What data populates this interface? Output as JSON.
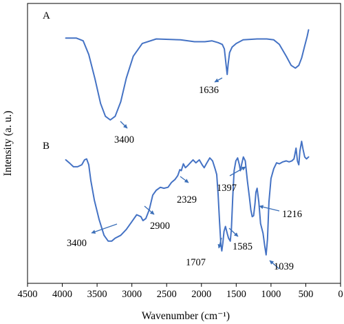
{
  "chart_data": {
    "type": "line",
    "xlabel": "Wavenumber (cm⁻¹)",
    "ylabel": "Intensity (a. u.)",
    "xlim": [
      4500,
      0
    ],
    "x_reversed": true,
    "x_ticks": [
      "4500",
      "4000",
      "3500",
      "3000",
      "2500",
      "2000",
      "1500",
      "1000",
      "500",
      "0"
    ],
    "grid": false,
    "colors": {
      "line": "#4472c4",
      "arrow": "#3b6fb8",
      "axis": "#000000"
    },
    "series": [
      {
        "name": "A",
        "points": [
          [
            3950,
            0.9
          ],
          [
            3800,
            0.9
          ],
          [
            3700,
            0.87
          ],
          [
            3620,
            0.72
          ],
          [
            3530,
            0.45
          ],
          [
            3450,
            0.18
          ],
          [
            3380,
            0.04
          ],
          [
            3310,
            0.0
          ],
          [
            3240,
            0.04
          ],
          [
            3160,
            0.2
          ],
          [
            3080,
            0.46
          ],
          [
            2980,
            0.7
          ],
          [
            2850,
            0.84
          ],
          [
            2650,
            0.89
          ],
          [
            2300,
            0.88
          ],
          [
            2100,
            0.86
          ],
          [
            1950,
            0.86
          ],
          [
            1850,
            0.87
          ],
          [
            1760,
            0.85
          ],
          [
            1700,
            0.83
          ],
          [
            1670,
            0.78
          ],
          [
            1645,
            0.6
          ],
          [
            1630,
            0.5
          ],
          [
            1615,
            0.62
          ],
          [
            1595,
            0.74
          ],
          [
            1560,
            0.8
          ],
          [
            1500,
            0.84
          ],
          [
            1400,
            0.88
          ],
          [
            1200,
            0.89
          ],
          [
            1060,
            0.89
          ],
          [
            960,
            0.88
          ],
          [
            880,
            0.83
          ],
          [
            780,
            0.7
          ],
          [
            710,
            0.6
          ],
          [
            650,
            0.57
          ],
          [
            600,
            0.6
          ],
          [
            560,
            0.68
          ],
          [
            520,
            0.8
          ],
          [
            480,
            0.92
          ],
          [
            460,
            0.99
          ]
        ],
        "panel_label": "A",
        "annotations": [
          {
            "text": "1636",
            "x": 1636
          },
          {
            "text": "3400",
            "x": 3300
          }
        ]
      },
      {
        "name": "B",
        "points": [
          [
            3950,
            0.93
          ],
          [
            3900,
            0.9
          ],
          [
            3840,
            0.86
          ],
          [
            3780,
            0.86
          ],
          [
            3720,
            0.88
          ],
          [
            3680,
            0.93
          ],
          [
            3650,
            0.94
          ],
          [
            3620,
            0.88
          ],
          [
            3590,
            0.72
          ],
          [
            3540,
            0.52
          ],
          [
            3470,
            0.32
          ],
          [
            3400,
            0.16
          ],
          [
            3340,
            0.1
          ],
          [
            3290,
            0.1
          ],
          [
            3240,
            0.13
          ],
          [
            3160,
            0.16
          ],
          [
            3080,
            0.22
          ],
          [
            3000,
            0.3
          ],
          [
            2930,
            0.37
          ],
          [
            2900,
            0.36
          ],
          [
            2870,
            0.35
          ],
          [
            2840,
            0.31
          ],
          [
            2800,
            0.33
          ],
          [
            2750,
            0.42
          ],
          [
            2700,
            0.57
          ],
          [
            2650,
            0.62
          ],
          [
            2590,
            0.65
          ],
          [
            2540,
            0.64
          ],
          [
            2480,
            0.65
          ],
          [
            2430,
            0.7
          ],
          [
            2380,
            0.73
          ],
          [
            2340,
            0.77
          ],
          [
            2310,
            0.83
          ],
          [
            2290,
            0.82
          ],
          [
            2260,
            0.89
          ],
          [
            2230,
            0.85
          ],
          [
            2200,
            0.87
          ],
          [
            2160,
            0.9
          ],
          [
            2120,
            0.93
          ],
          [
            2080,
            0.9
          ],
          [
            2030,
            0.93
          ],
          [
            1990,
            0.88
          ],
          [
            1960,
            0.85
          ],
          [
            1930,
            0.89
          ],
          [
            1880,
            0.95
          ],
          [
            1840,
            0.92
          ],
          [
            1800,
            0.83
          ],
          [
            1780,
            0.78
          ],
          [
            1760,
            0.58
          ],
          [
            1740,
            0.3
          ],
          [
            1720,
            0.06
          ],
          [
            1707,
            0.0
          ],
          [
            1692,
            0.08
          ],
          [
            1675,
            0.2
          ],
          [
            1655,
            0.25
          ],
          [
            1630,
            0.18
          ],
          [
            1610,
            0.13
          ],
          [
            1585,
            0.1
          ],
          [
            1570,
            0.22
          ],
          [
            1550,
            0.55
          ],
          [
            1530,
            0.82
          ],
          [
            1505,
            0.92
          ],
          [
            1480,
            0.95
          ],
          [
            1455,
            0.88
          ],
          [
            1440,
            0.82
          ],
          [
            1420,
            0.89
          ],
          [
            1397,
            0.96
          ],
          [
            1370,
            0.92
          ],
          [
            1340,
            0.72
          ],
          [
            1310,
            0.55
          ],
          [
            1290,
            0.42
          ],
          [
            1270,
            0.35
          ],
          [
            1250,
            0.36
          ],
          [
            1230,
            0.48
          ],
          [
            1216,
            0.6
          ],
          [
            1200,
            0.64
          ],
          [
            1175,
            0.5
          ],
          [
            1150,
            0.28
          ],
          [
            1115,
            0.18
          ],
          [
            1090,
            0.05
          ],
          [
            1070,
            -0.04
          ],
          [
            1050,
            0.12
          ],
          [
            1030,
            0.5
          ],
          [
            1000,
            0.74
          ],
          [
            960,
            0.84
          ],
          [
            920,
            0.9
          ],
          [
            880,
            0.89
          ],
          [
            830,
            0.91
          ],
          [
            780,
            0.92
          ],
          [
            740,
            0.91
          ],
          [
            700,
            0.92
          ],
          [
            670,
            0.94
          ],
          [
            640,
            1.05
          ],
          [
            620,
            0.92
          ],
          [
            600,
            0.88
          ],
          [
            585,
            1.02
          ],
          [
            560,
            1.12
          ],
          [
            540,
            1.04
          ],
          [
            515,
            0.96
          ],
          [
            490,
            0.94
          ],
          [
            460,
            0.96
          ]
        ],
        "panel_label": "B",
        "annotations": [
          {
            "text": "3400",
            "x": 3330
          },
          {
            "text": "2900",
            "x": 2850
          },
          {
            "text": "2329",
            "x": 2390
          },
          {
            "text": "1397",
            "x": 1397
          },
          {
            "text": "1216",
            "x": 1216
          },
          {
            "text": "1707",
            "x": 1707
          },
          {
            "text": "1585",
            "x": 1585
          },
          {
            "text": "1039",
            "x": 1050
          }
        ]
      }
    ]
  }
}
